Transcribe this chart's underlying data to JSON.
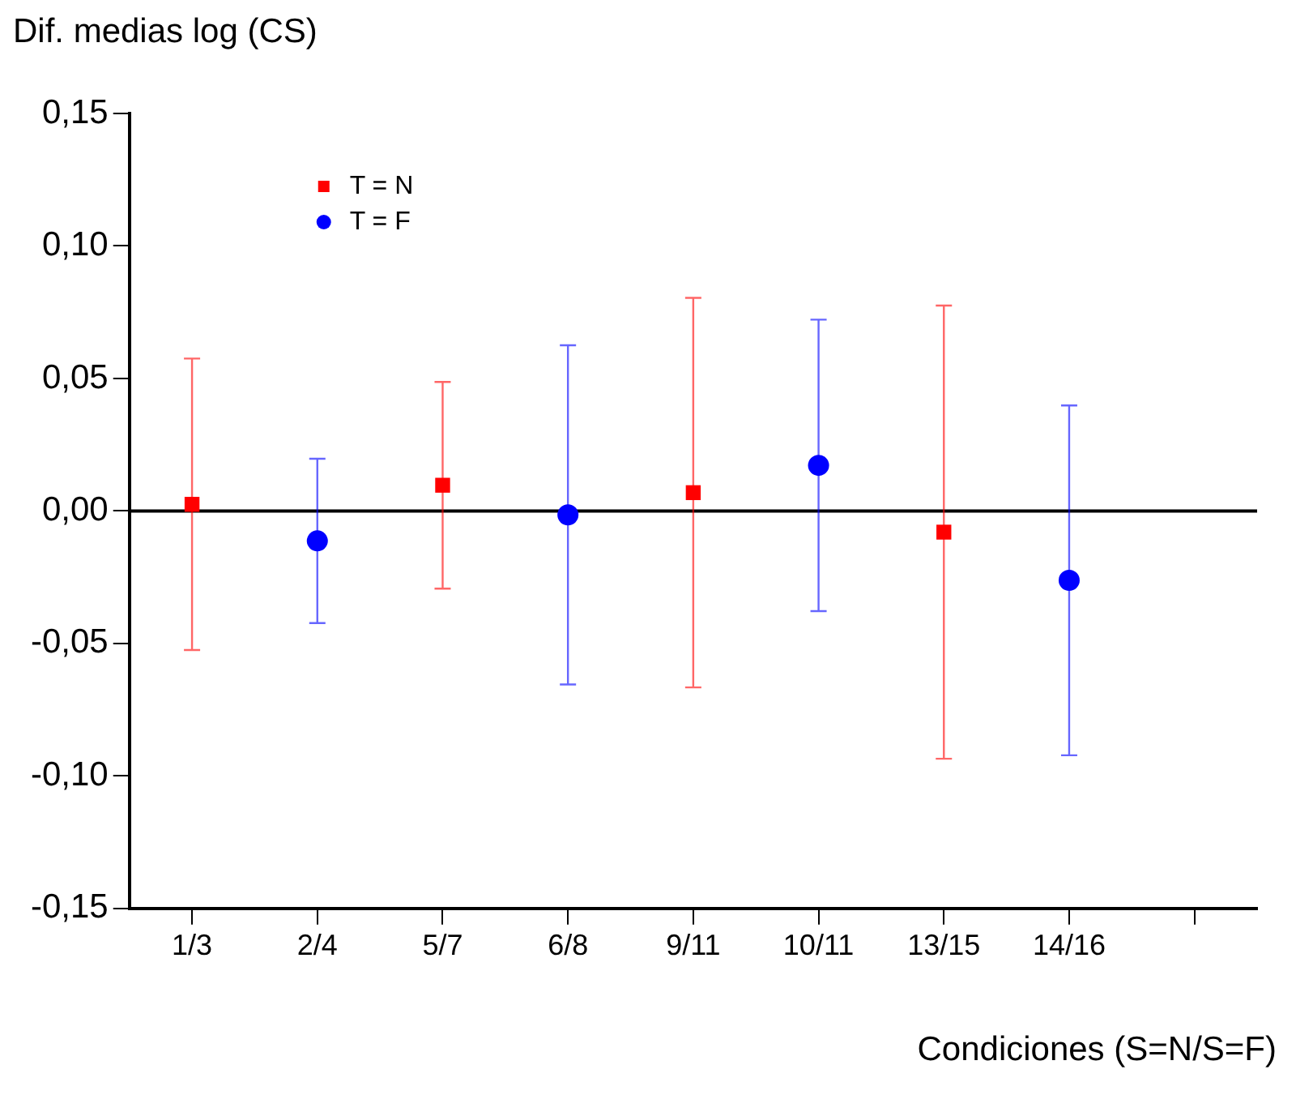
{
  "chart_data": {
    "type": "scatter",
    "ylabel": "Dif. medias log (CS)",
    "xlabel": "Condiciones (S=N/S=F)",
    "categories": [
      "1/3",
      "2/4",
      "5/7",
      "6/8",
      "9/11",
      "10/11",
      "13/15",
      "14/16",
      null
    ],
    "series": [
      {
        "name": "T = N",
        "color": "#ff0000",
        "marker": "square",
        "values": [
          0.0025,
          null,
          0.0097,
          null,
          0.0069,
          null,
          -0.008,
          null,
          null
        ],
        "errors": [
          0.055,
          null,
          0.039,
          null,
          0.0735,
          null,
          0.0855,
          null,
          null
        ]
      },
      {
        "name": "T = F",
        "color": "#0000ff",
        "marker": "circle",
        "values": [
          null,
          -0.0113,
          null,
          -0.0015,
          null,
          0.0172,
          null,
          -0.0262,
          null
        ],
        "errors": [
          null,
          0.031,
          null,
          0.064,
          null,
          0.055,
          null,
          0.066,
          null
        ]
      }
    ],
    "ylim": [
      -0.15,
      0.15
    ],
    "yticks": [
      {
        "value": -0.15,
        "label": "-0,15"
      },
      {
        "value": -0.1,
        "label": "-0,10"
      },
      {
        "value": -0.05,
        "label": "-0,05"
      },
      {
        "value": 0,
        "label": "0,00"
      },
      {
        "value": 0.05,
        "label": "0,05"
      },
      {
        "value": 0.1,
        "label": "0,10"
      },
      {
        "value": 0.15,
        "label": "0,15"
      }
    ],
    "ref_lines": [
      {
        "axis": "y",
        "value": 0,
        "color": "#000000"
      }
    ],
    "grid": false,
    "legend": "top left"
  }
}
